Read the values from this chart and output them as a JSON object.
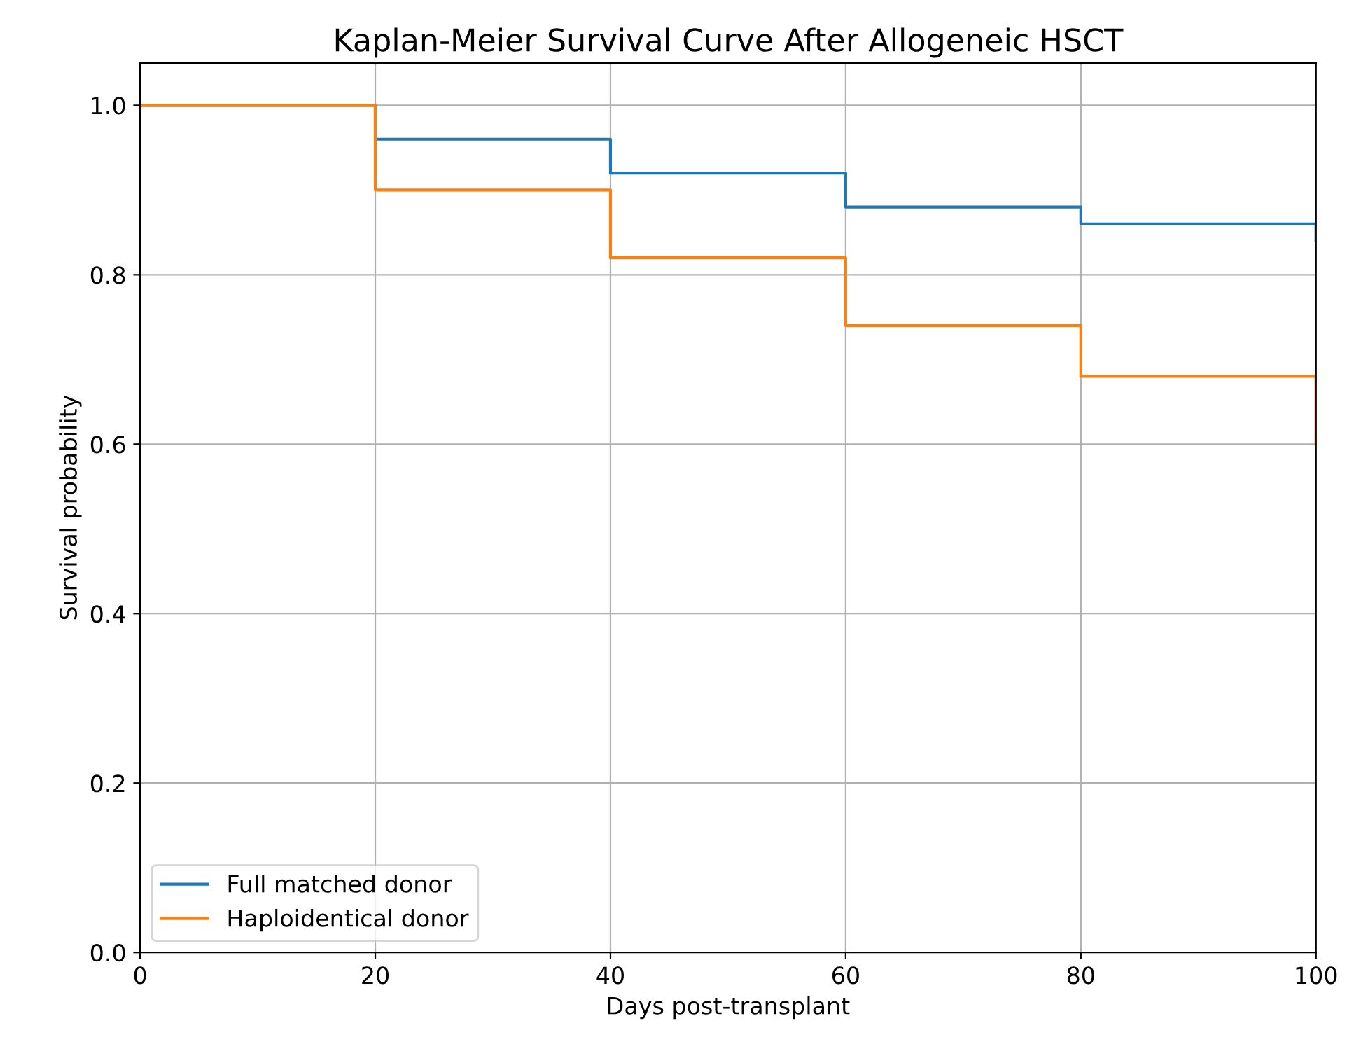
{
  "chart_data": {
    "type": "step",
    "title": "Kaplan-Meier Survival Curve After Allogeneic HSCT",
    "xlabel": "Days post-transplant",
    "ylabel": "Survival probability",
    "x": [
      0,
      20,
      40,
      60,
      80,
      100
    ],
    "series": [
      {
        "name": "Full matched donor",
        "color": "#1f77b4",
        "values": [
          1.0,
          0.96,
          0.92,
          0.88,
          0.86,
          0.84
        ]
      },
      {
        "name": "Haploidentical donor",
        "color": "#ff7f0e",
        "values": [
          1.0,
          0.9,
          0.82,
          0.74,
          0.68,
          0.6
        ]
      }
    ],
    "xlim": [
      0,
      100
    ],
    "ylim": [
      0,
      1.05
    ],
    "xticks": [
      0,
      20,
      40,
      60,
      80,
      100
    ],
    "yticks": [
      {
        "value": 0,
        "label": "0.0"
      },
      {
        "value": 0.2,
        "label": "0.2"
      },
      {
        "value": 0.4,
        "label": "0.4"
      },
      {
        "value": 0.6,
        "label": "0.6"
      },
      {
        "value": 0.8,
        "label": "0.8"
      },
      {
        "value": 1.0,
        "label": "1.0"
      }
    ],
    "grid": true,
    "legend": "lower left",
    "line_style": "solid",
    "marker": "none"
  }
}
